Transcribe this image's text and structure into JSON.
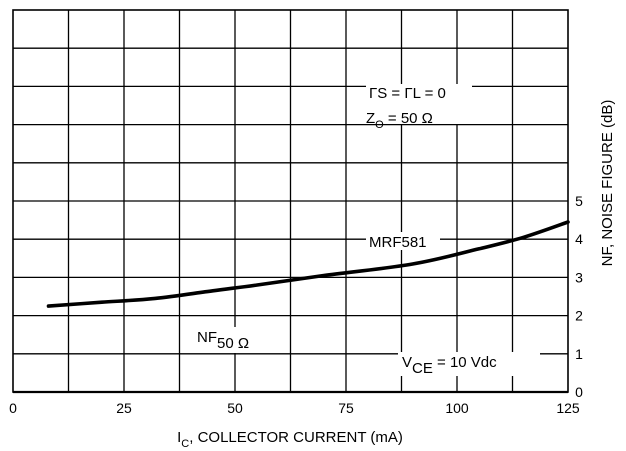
{
  "chart_data": {
    "type": "line",
    "xlabel": {
      "main": "I",
      "sub": "C",
      "rest": ", COLLECTOR CURRENT (mA)"
    },
    "ylabel": "NF, NOISE FIGURE (dB)",
    "xlim": [
      0,
      125
    ],
    "ylim": [
      0,
      10
    ],
    "x_ticks": [
      0,
      25,
      50,
      75,
      100,
      125
    ],
    "y_ticks": [
      0,
      1,
      2,
      3,
      4,
      5
    ],
    "grid": true,
    "series": [
      {
        "name": "MRF581",
        "x": [
          8,
          20,
          32,
          45,
          55,
          70,
          90,
          105,
          115,
          125
        ],
        "y": [
          2.25,
          2.35,
          2.45,
          2.65,
          2.8,
          3.05,
          3.35,
          3.75,
          4.05,
          4.45
        ]
      }
    ],
    "annotations": {
      "gamma": "ΓS = ΓL = 0",
      "z0": {
        "main": "Z",
        "sub": "O",
        "rest": " = 50 Ω"
      },
      "nf50": {
        "main": "NF",
        "sub": "50 Ω"
      },
      "vce": {
        "main": "V",
        "sub": "CE",
        "rest": " = 10 Vdc"
      }
    }
  }
}
